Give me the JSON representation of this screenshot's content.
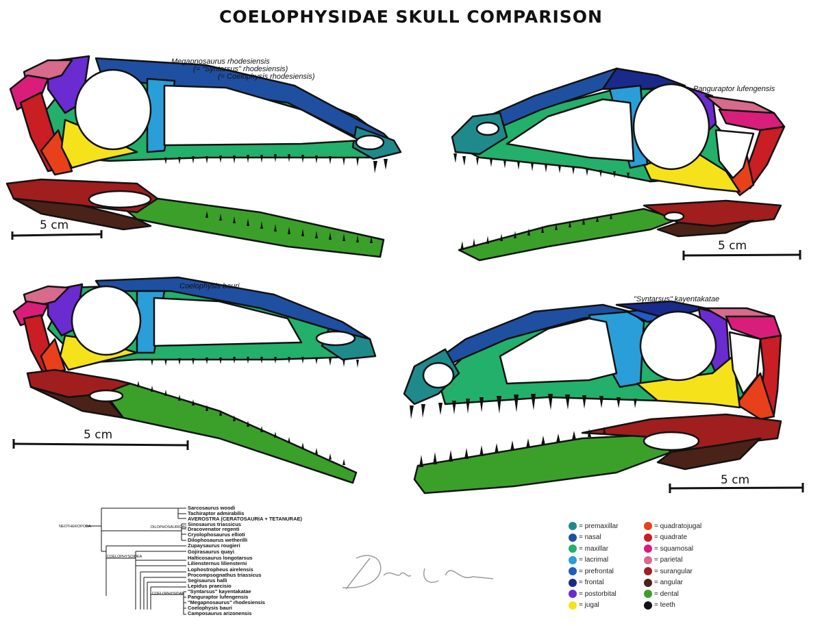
{
  "title": "COELOPHYSIDAE SKULL COMPARISON",
  "skulls": {
    "megapnosaurus": {
      "name_line1": "Megapnosaurus rhodesiensis",
      "name_line2": "(= \"Syntarsus\" rhodesiensis)",
      "name_line3": "(= Coelophysis rhodesiensis)",
      "scale": "5 cm"
    },
    "panguraptor": {
      "name": "Panguraptor lufengensis",
      "scale": "5 cm"
    },
    "coelophysis": {
      "name": "Coelophysis bauri",
      "scale": "5 cm"
    },
    "kayentakatae": {
      "name": "\"Syntarsus\" kayentakatae",
      "scale": "5 cm"
    }
  },
  "colors": {
    "premaxillar": "#1f8a8c",
    "nasal": "#1f4fa0",
    "maxillar": "#22b06a",
    "lacrimal": "#2a9ed8",
    "prefrontal": "#1e5cc8",
    "frontal": "#1a2a8a",
    "postorbital": "#6a2bd0",
    "jugal": "#f5e21a",
    "quadratojugal": "#e8401a",
    "quadrate": "#c81e24",
    "squamosal": "#d81e7a",
    "parietal": "#d86a8c",
    "surangular": "#a01e1e",
    "angular": "#4a2218",
    "dental": "#3aa02a",
    "teeth": "#111111"
  },
  "legend": {
    "left": [
      {
        "label": "= premaxillar",
        "color": "#1f8a8c"
      },
      {
        "label": "= nasal",
        "color": "#1f4fa0"
      },
      {
        "label": "= maxillar",
        "color": "#22b06a"
      },
      {
        "label": "= lacrimal",
        "color": "#2a9ed8"
      },
      {
        "label": "= prefrontal",
        "color": "#1e5cc8"
      },
      {
        "label": "= frontal",
        "color": "#1a2a8a"
      },
      {
        "label": "= postorbital",
        "color": "#6a2bd0"
      },
      {
        "label": "= jugal",
        "color": "#f5e21a"
      }
    ],
    "right": [
      {
        "label": "= quadratojugal",
        "color": "#e8401a"
      },
      {
        "label": "= quadrate",
        "color": "#c81e24"
      },
      {
        "label": "= squamosal",
        "color": "#d81e7a"
      },
      {
        "label": "= parietal",
        "color": "#d86a8c"
      },
      {
        "label": "= surangular",
        "color": "#a01e1e"
      },
      {
        "label": "= angular",
        "color": "#4a2218"
      },
      {
        "label": "= dental",
        "color": "#3aa02a"
      },
      {
        "label": "= teeth",
        "color": "#111111"
      }
    ]
  },
  "cladogram": {
    "nodes": {
      "neotheropoda": "NEOTHEROPODA",
      "dilophosauridae": "DILOPHOSAURIDAE",
      "coelophysoidea": "COELOPHYSOIDEA",
      "coelophysidae": "COELOPHYSIDAE"
    },
    "taxa": [
      "Sarcosaurus woodi",
      "Tachiraptor admirabilis",
      "AVEROSTRA (CERATOSAURIA + TETANURAE)",
      "Sinosaurus triassicus",
      "Dracovenator regenti",
      "Cryolophosaurus ellioti",
      "Dilophosaurus wetherilli",
      "Zupaysaurus rougieri",
      "Gojirasaurus quayi",
      "Halticosaurus longotarsus",
      "Liliensternus liliensterni",
      "Lophostropheus airelensis",
      "Procompsognathus triassicus",
      "Segisaurus halli",
      "Lepidus praecisio",
      "\"Syntarsus\" kayentakatae",
      "Panguraptor lufengensis",
      "\"Megapnosaurus\" rhodesiensis",
      "Coelophysis bauri",
      "Camposaurus arizonensis"
    ]
  },
  "signature": "Danny Cicchetti"
}
